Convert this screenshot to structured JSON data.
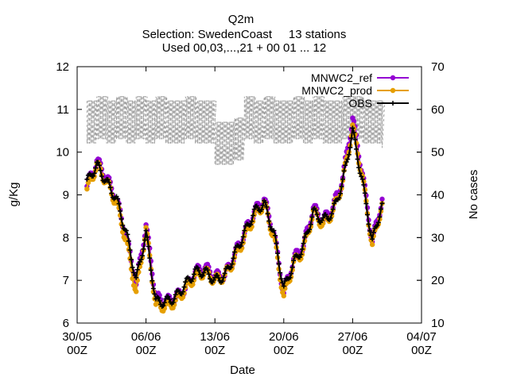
{
  "title_lines": [
    "Q2m",
    "Selection: SwedenCoast     13 stations",
    "Used 00,03,...,21 + 00 01 ... 12"
  ],
  "chart_data": {
    "type": "line",
    "xlabel": "Date",
    "ylabel": "g/Kg",
    "y2label": "No cases",
    "x_range": [
      "2022-05-30 00:00",
      "2022-07-04 00:00"
    ],
    "ylim": [
      6,
      12
    ],
    "y2lim": [
      10,
      70
    ],
    "y_ticks": [
      "6",
      "7",
      "8",
      "9",
      "10",
      "11",
      "12"
    ],
    "y2_ticks": [
      "10",
      "20",
      "30",
      "40",
      "50",
      "60",
      "70"
    ],
    "x_ticks": [
      {
        "line1": "30/05",
        "line2": "00Z",
        "date": "2022-05-30"
      },
      {
        "line1": "06/06",
        "line2": "00Z",
        "date": "2022-06-06"
      },
      {
        "line1": "13/06",
        "line2": "00Z",
        "date": "2022-06-13"
      },
      {
        "line1": "20/06",
        "line2": "00Z",
        "date": "2022-06-20"
      },
      {
        "line1": "27/06",
        "line2": "00Z",
        "date": "2022-06-27"
      },
      {
        "line1": "04/07",
        "line2": "00Z",
        "date": "2022-07-04"
      }
    ],
    "grid": false,
    "legend_position": "top-right",
    "series": [
      {
        "name": "MNWC2_ref",
        "color": "#9400d3",
        "axis": "y",
        "marker": "filled-circle"
      },
      {
        "name": "MNWC2_prod",
        "color": "#e69f00",
        "axis": "y",
        "marker": "filled-circle"
      },
      {
        "name": "OBS",
        "color": "#000000",
        "axis": "y",
        "marker": "plus"
      },
      {
        "name": "No cases",
        "color": "#a0a0a0",
        "axis": "y2",
        "style": "dashed"
      }
    ],
    "daily_values": {
      "dates": [
        "2022-05-31",
        "2022-06-01",
        "2022-06-02",
        "2022-06-03",
        "2022-06-04",
        "2022-06-05",
        "2022-06-06",
        "2022-06-07",
        "2022-06-08",
        "2022-06-09",
        "2022-06-10",
        "2022-06-11",
        "2022-06-12",
        "2022-06-13",
        "2022-06-14",
        "2022-06-15",
        "2022-06-16",
        "2022-06-17",
        "2022-06-18",
        "2022-06-19",
        "2022-06-20",
        "2022-06-21",
        "2022-06-22",
        "2022-06-23",
        "2022-06-24",
        "2022-06-25",
        "2022-06-26",
        "2022-06-27",
        "2022-06-28",
        "2022-06-29",
        "2022-06-30"
      ],
      "MNWC2_ref": [
        9.2,
        9.8,
        9.4,
        8.9,
        8.0,
        6.9,
        8.3,
        6.6,
        6.5,
        6.6,
        6.8,
        7.2,
        7.3,
        7.1,
        7.1,
        7.6,
        8.1,
        8.6,
        8.9,
        8.1,
        6.7,
        7.5,
        7.8,
        8.7,
        8.4,
        8.7,
        9.4,
        10.8,
        9.5,
        7.9,
        8.9
      ],
      "MNWC2_prod": [
        9.1,
        9.7,
        9.3,
        8.8,
        7.9,
        6.7,
        8.2,
        6.4,
        6.4,
        6.5,
        6.8,
        7.1,
        7.2,
        7.0,
        7.1,
        7.5,
        8.0,
        8.5,
        8.8,
        8.0,
        6.6,
        7.4,
        7.7,
        8.6,
        8.3,
        8.6,
        9.3,
        10.6,
        9.4,
        7.8,
        8.8
      ],
      "OBS": [
        9.3,
        9.7,
        9.3,
        8.9,
        8.1,
        7.0,
        8.1,
        6.5,
        6.5,
        6.6,
        6.9,
        7.2,
        7.2,
        7.0,
        7.1,
        7.6,
        8.1,
        8.6,
        8.8,
        8.1,
        6.8,
        7.4,
        7.8,
        8.6,
        8.4,
        8.6,
        9.3,
        10.5,
        9.3,
        7.9,
        8.8
      ],
      "No_cases": [
        62,
        63,
        62,
        63,
        62,
        63,
        62,
        63,
        62,
        62,
        63,
        62,
        62,
        57,
        57,
        58,
        63,
        62,
        63,
        62,
        62,
        63,
        62,
        63,
        62,
        62,
        63,
        63,
        62,
        62,
        61
      ]
    }
  }
}
